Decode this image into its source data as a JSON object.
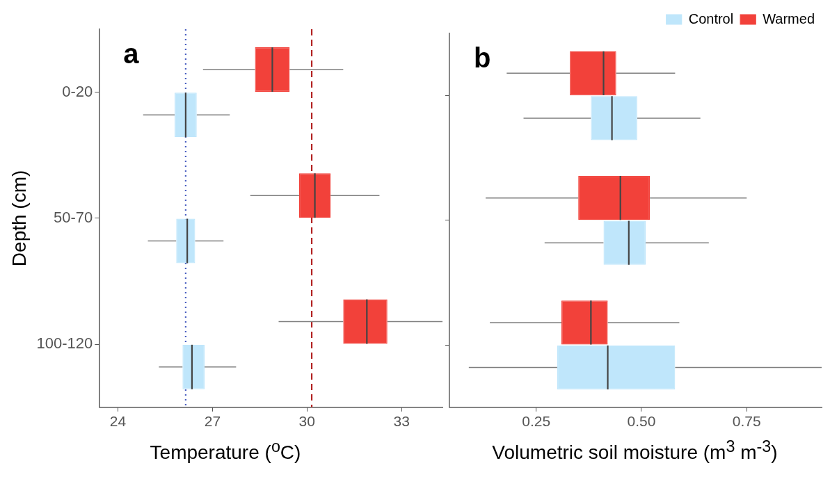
{
  "chart_data": [
    {
      "type": "box",
      "title": "a",
      "orientation": "horizontal",
      "categories": [
        "0-20",
        "50-70",
        "100-120"
      ],
      "xlabel": "Temperature ($^{o}$C)",
      "ylabel": "Depth (cm)",
      "xlim": [
        23.4,
        34.3
      ],
      "xticks": [
        24,
        27,
        30,
        33
      ],
      "grid": false,
      "legend": false,
      "series": [
        {
          "color": "#f2413a",
          "boxes": [
            {
              "low": 26.7,
              "q1": 28.35,
              "median": 28.9,
              "q3": 29.45,
              "high": 31.15
            },
            {
              "low": 28.2,
              "q1": 29.75,
              "median": 30.25,
              "q3": 30.75,
              "high": 32.3
            },
            {
              "low": 29.1,
              "q1": 31.15,
              "median": 31.9,
              "q3": 32.55,
              "high": 34.3
            }
          ]
        },
        {
          "color": "#bfe6fb",
          "boxes": [
            {
              "low": 24.8,
              "q1": 25.8,
              "median": 26.15,
              "q3": 26.5,
              "high": 27.55
            },
            {
              "low": 24.95,
              "q1": 25.85,
              "median": 26.2,
              "q3": 26.45,
              "high": 27.35
            },
            {
              "low": 25.3,
              "q1": 26.05,
              "median": 26.35,
              "q3": 26.75,
              "high": 27.75
            }
          ]
        }
      ],
      "ref_lines": [
        {
          "axis": "x",
          "value": 26.15,
          "color": "#4a5fc1",
          "line_style": "dotted"
        },
        {
          "axis": "x",
          "value": 30.15,
          "color": "#b22222",
          "line_style": "dashed"
        }
      ]
    },
    {
      "type": "box",
      "title": "b",
      "orientation": "horizontal",
      "categories": [
        null,
        null,
        null
      ],
      "xlabel": "Volumetric soil moisture (m$^{3}$ m$^{-3}$)",
      "xlim": [
        0.044,
        0.928
      ],
      "xticks": [
        {
          "value": 0.25,
          "label": "0.25"
        },
        {
          "value": 0.5,
          "label": "0.50"
        },
        {
          "value": 0.75,
          "label": "0.75"
        }
      ],
      "grid": false,
      "legend": "top right",
      "tick_labels": "x",
      "series": [
        {
          "name": "Warmed",
          "color": "#f2413a",
          "boxes": [
            {
              "low": 0.18,
              "q1": 0.33,
              "median": 0.41,
              "q3": 0.44,
              "high": 0.58
            },
            {
              "low": 0.13,
              "q1": 0.35,
              "median": 0.45,
              "q3": 0.52,
              "high": 0.75
            },
            {
              "low": 0.14,
              "q1": 0.31,
              "median": 0.38,
              "q3": 0.42,
              "high": 0.59
            }
          ]
        },
        {
          "name": "Control",
          "color": "#bfe6fb",
          "boxes": [
            {
              "low": 0.22,
              "q1": 0.38,
              "median": 0.43,
              "q3": 0.49,
              "high": 0.64
            },
            {
              "low": 0.27,
              "q1": 0.41,
              "median": 0.47,
              "q3": 0.51,
              "high": 0.66
            },
            {
              "low": 0.09,
              "q1": 0.3,
              "median": 0.42,
              "q3": 0.58,
              "high": 0.928
            }
          ]
        }
      ]
    }
  ]
}
